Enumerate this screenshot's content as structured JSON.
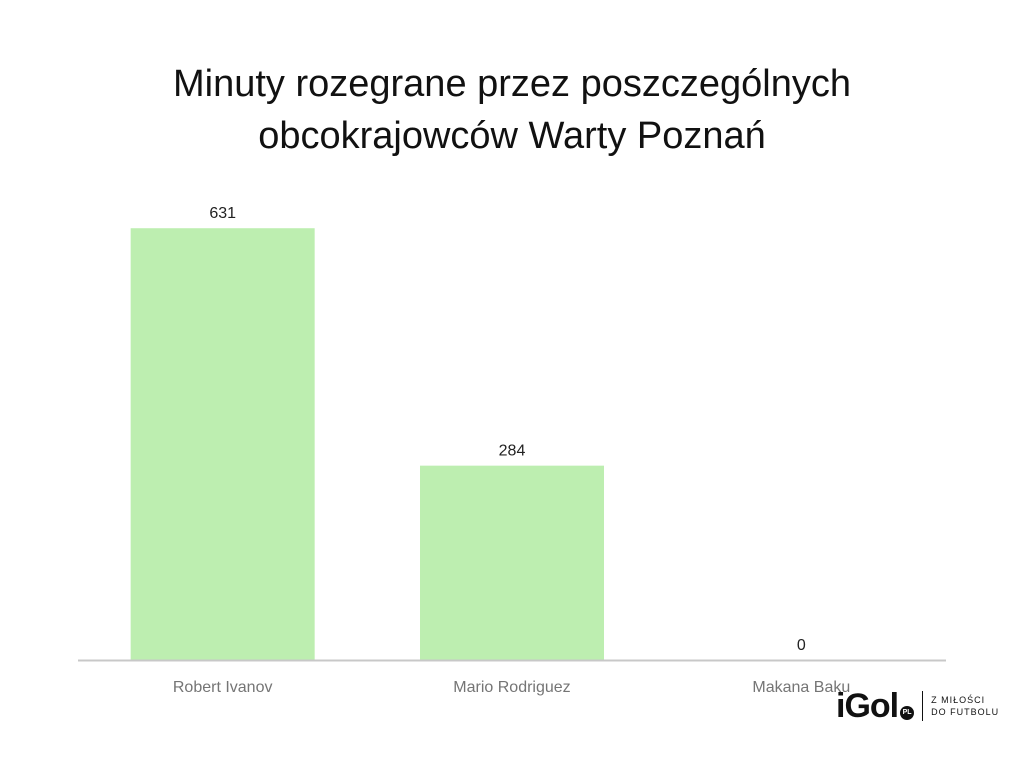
{
  "header": {
    "title_line1": "Minuty rozegrane przez poszczególnych",
    "title_line2": "obcokrajowców Warty Poznań"
  },
  "chart_data": {
    "type": "bar",
    "categories": [
      "Robert Ivanov",
      "Mario Rodriguez",
      "Makana Baku"
    ],
    "values": [
      631,
      284,
      0
    ],
    "title": "Minuty rozegrane przez poszczególnych obcokrajowców Warty Poznań",
    "xlabel": "",
    "ylabel": "",
    "ylim": [
      0,
      700
    ],
    "grid": false,
    "legend": "none",
    "data_labels": true,
    "bar_color": "#bdeeb0",
    "axis_color": "#c8c8c8",
    "label_color": "#222222",
    "tick_color": "#757575"
  },
  "brand": {
    "logo": "iGol",
    "badge": "PL",
    "tagline_line1": "Z MIŁOŚCI",
    "tagline_line2": "DO FUTBOLU"
  }
}
